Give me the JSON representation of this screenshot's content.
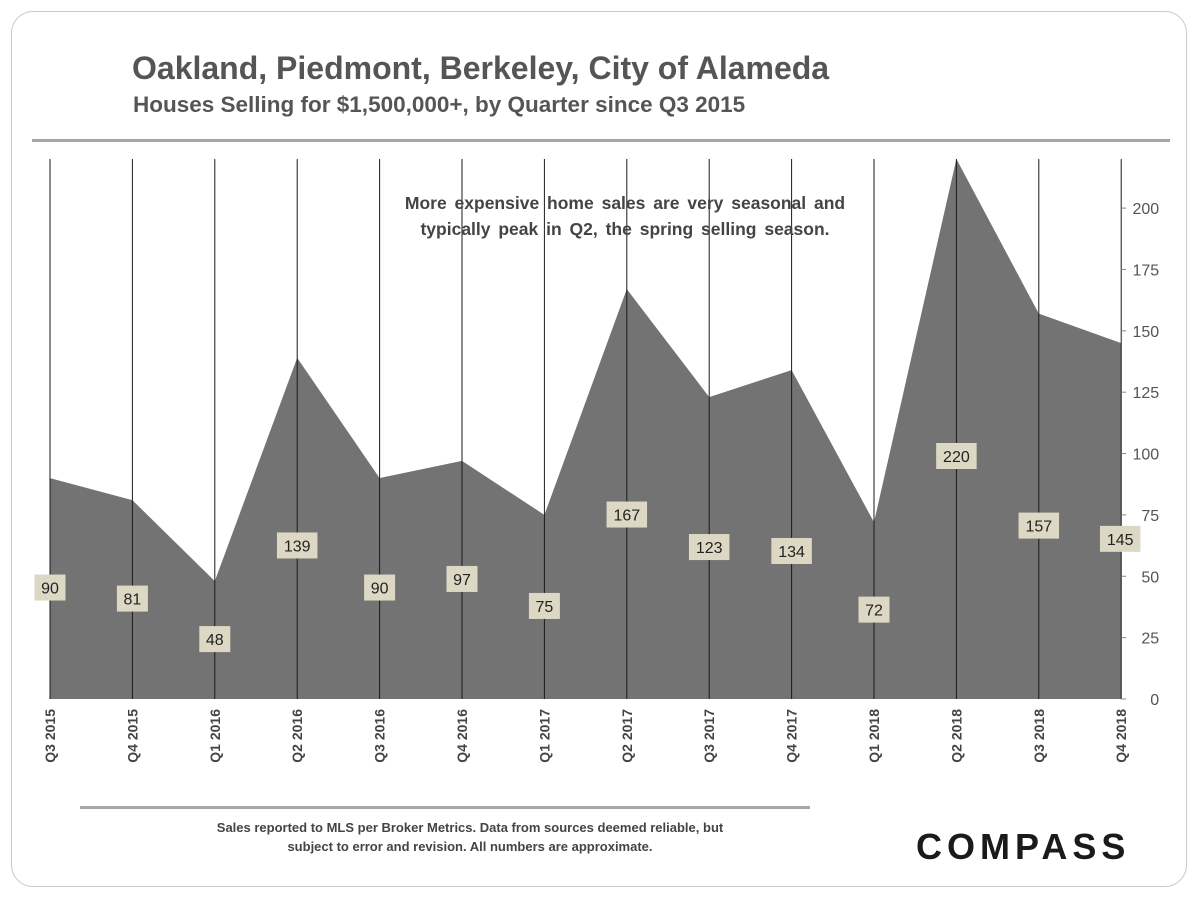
{
  "chart_data": {
    "type": "area",
    "title": "Oakland, Piedmont, Berkeley, City of Alameda",
    "subtitle": "Houses Selling for $1,500,000+, by Quarter since Q3 2015",
    "categories": [
      "Q3 2015",
      "Q4 2015",
      "Q1 2016",
      "Q2 2016",
      "Q3 2016",
      "Q4 2016",
      "Q1 2017",
      "Q2 2017",
      "Q3 2017",
      "Q4 2017",
      "Q1 2018",
      "Q2 2018",
      "Q3 2018",
      "Q4 2018"
    ],
    "values": [
      90,
      81,
      48,
      139,
      90,
      97,
      75,
      167,
      123,
      134,
      72,
      220,
      157,
      145
    ],
    "data_labels": [
      "90",
      "81",
      "48",
      "139",
      "90",
      "97",
      "75",
      "167",
      "123",
      "134",
      "72",
      "220",
      "157",
      "145"
    ],
    "yticks": [
      "0",
      "25",
      "50",
      "75",
      "100",
      "125",
      "150",
      "175",
      "200"
    ],
    "ylim": [
      0,
      220
    ],
    "y_axis_side": "right",
    "annotation": [
      "More expensive home sales are very seasonal and",
      "typically peak in Q2, the spring selling season."
    ],
    "colors": {
      "area": "#737373",
      "label_box": "#ddd8c4",
      "text": "#555555"
    }
  },
  "footnote": {
    "line1": "Sales reported to MLS per Broker Metrics. Data from sources deemed reliable, but",
    "line2": "subject to error and revision. All numbers are approximate."
  },
  "brand": {
    "logo": "COMPASS"
  }
}
